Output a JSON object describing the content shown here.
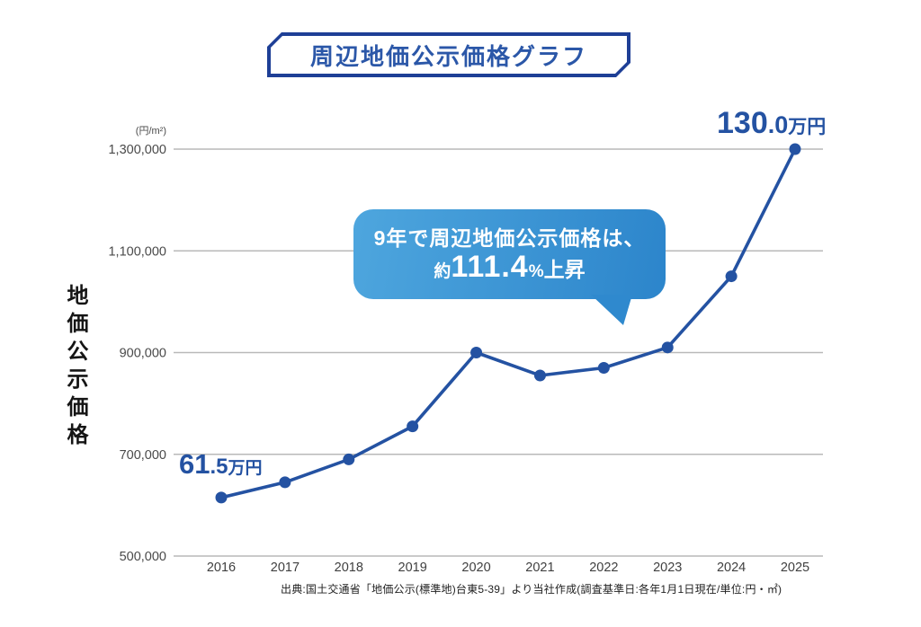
{
  "header": {
    "title": "周辺地価公示価格グラフ"
  },
  "chart_data": {
    "type": "line",
    "title": "周辺地価公示価格グラフ",
    "x": [
      "2016",
      "2017",
      "2018",
      "2019",
      "2020",
      "2021",
      "2022",
      "2023",
      "2024",
      "2025"
    ],
    "series": [
      {
        "name": "地価公示価格",
        "values": [
          615000,
          645000,
          690000,
          755000,
          900000,
          855000,
          870000,
          910000,
          1050000,
          1300000
        ]
      }
    ],
    "ylabel": "地価公示価格",
    "y_unit": "(円/m²)",
    "ylim": [
      500000,
      1300000
    ],
    "yticks": [
      500000,
      700000,
      900000,
      1100000,
      1300000
    ],
    "ytick_labels": [
      "500,000",
      "700,000",
      "900,000",
      "1,100,000",
      "1,300,000"
    ],
    "grid": "horizontal",
    "legend": "none",
    "line_color": "#2452a2",
    "annotations": {
      "first": {
        "value_main": "61",
        "value_decimal": ".5",
        "unit": "万円"
      },
      "last": {
        "value_main": "130",
        "value_decimal": ".0",
        "unit": "万円"
      }
    }
  },
  "callout": {
    "line1": "9年で周辺地価公示価格は、",
    "line2_prefix": "約",
    "line2_value": "111.4",
    "line2_percent": "%",
    "line2_suffix": "上昇"
  },
  "footer": {
    "source": "出典:国土交通省「地価公示(標準地)台東5-39」より当社作成(調査基準日:各年1月1日現在/単位:円・㎡)"
  },
  "colors": {
    "line": "#2452a2",
    "grid": "#b9b9b9",
    "tick_text": "#4a4a4a",
    "title_border": "#1e3f96",
    "title_text": "#2b57a8",
    "bubble_start": "#4ea6de",
    "bubble_end": "#2c85cb"
  }
}
